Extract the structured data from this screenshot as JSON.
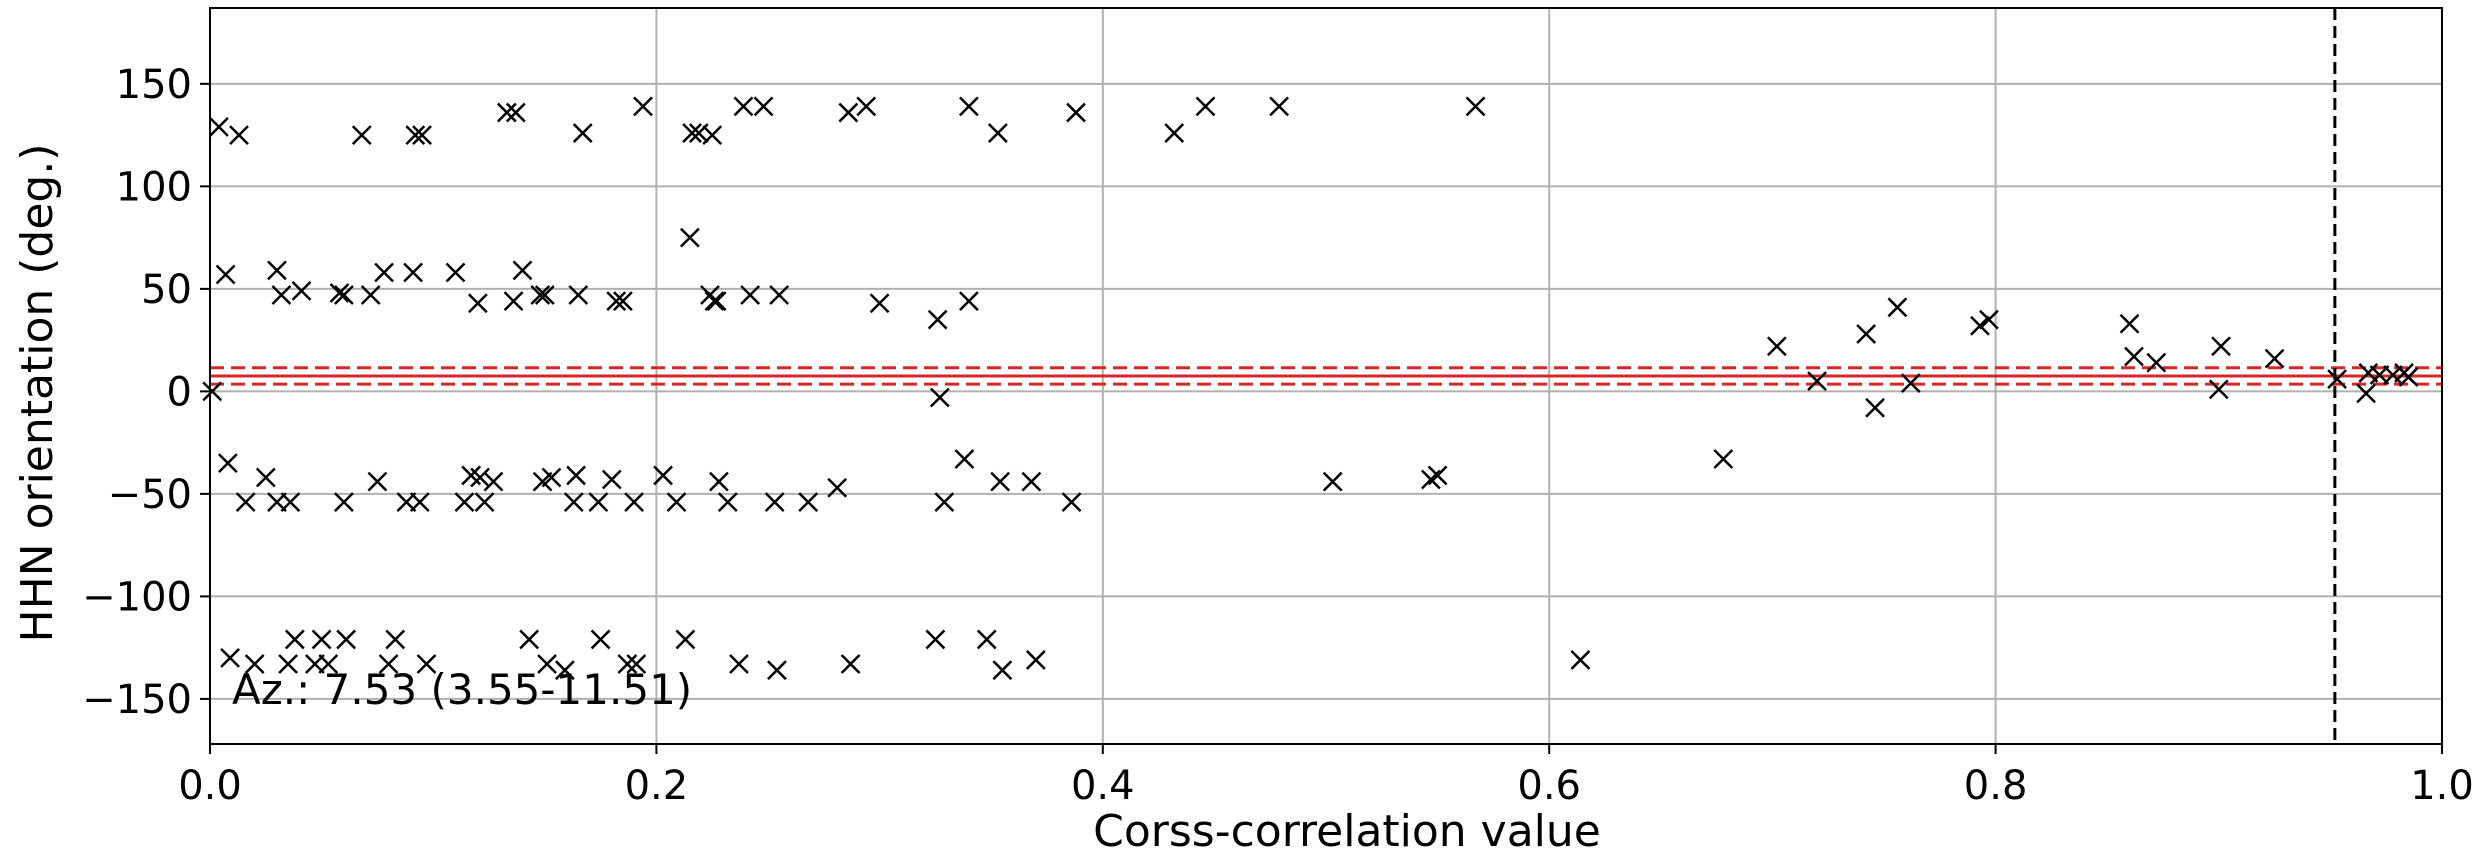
{
  "chart_data": {
    "type": "scatter",
    "xlabel": "Corss-correlation value",
    "ylabel": "HHN orientation (deg.)",
    "xlim": [
      0.0,
      1.0
    ],
    "ylim": [
      -172,
      187
    ],
    "x_ticks": [
      0.0,
      0.2,
      0.4,
      0.6,
      0.8,
      1.0
    ],
    "x_tick_labels": [
      "0.0",
      "0.2",
      "0.4",
      "0.6",
      "0.8",
      "1.0"
    ],
    "y_ticks": [
      150,
      100,
      50,
      0,
      -50,
      -100,
      -150
    ],
    "y_tick_labels": [
      "150",
      "100",
      "50",
      "0",
      "−50",
      "−100",
      "−150"
    ],
    "grid": true,
    "marker": "x",
    "marker_color": "#000000",
    "annotation": "Az.: 7.53 (3.55-11.51)",
    "best_azimuth": 7.53,
    "azimuth_range": [
      3.55,
      11.51
    ],
    "red_line_color": "#d62728",
    "threshold_x": 0.952,
    "series": [
      {
        "points": [
          [
            0.001,
            0
          ],
          [
            0.004,
            129
          ],
          [
            0.007,
            57
          ],
          [
            0.008,
            -35
          ],
          [
            0.009,
            -130
          ],
          [
            0.013,
            125
          ],
          [
            0.016,
            -54
          ],
          [
            0.02,
            -133
          ],
          [
            0.025,
            -42
          ],
          [
            0.03,
            59
          ],
          [
            0.03,
            -54
          ],
          [
            0.032,
            47
          ],
          [
            0.035,
            -133
          ],
          [
            0.036,
            -54
          ],
          [
            0.038,
            -121
          ],
          [
            0.041,
            49
          ],
          [
            0.047,
            -133
          ],
          [
            0.05,
            -121
          ],
          [
            0.053,
            -133
          ],
          [
            0.058,
            48
          ],
          [
            0.06,
            47
          ],
          [
            0.06,
            -54
          ],
          [
            0.061,
            -121
          ],
          [
            0.068,
            125
          ],
          [
            0.072,
            47
          ],
          [
            0.075,
            -44
          ],
          [
            0.078,
            58
          ],
          [
            0.08,
            -133
          ],
          [
            0.083,
            -121
          ],
          [
            0.088,
            -54
          ],
          [
            0.091,
            58
          ],
          [
            0.092,
            125
          ],
          [
            0.094,
            -54
          ],
          [
            0.095,
            125
          ],
          [
            0.097,
            -133
          ],
          [
            0.11,
            58
          ],
          [
            0.114,
            -54
          ],
          [
            0.117,
            -41
          ],
          [
            0.12,
            43
          ],
          [
            0.121,
            -42
          ],
          [
            0.123,
            -54
          ],
          [
            0.127,
            -44
          ],
          [
            0.133,
            136
          ],
          [
            0.136,
            44
          ],
          [
            0.137,
            136
          ],
          [
            0.14,
            59
          ],
          [
            0.143,
            -121
          ],
          [
            0.148,
            47
          ],
          [
            0.149,
            -44
          ],
          [
            0.15,
            47
          ],
          [
            0.151,
            -133
          ],
          [
            0.153,
            -42
          ],
          [
            0.159,
            -136
          ],
          [
            0.163,
            -54
          ],
          [
            0.164,
            -41
          ],
          [
            0.165,
            47
          ],
          [
            0.167,
            126
          ],
          [
            0.174,
            -54
          ],
          [
            0.175,
            -121
          ],
          [
            0.18,
            -43
          ],
          [
            0.182,
            44
          ],
          [
            0.185,
            44
          ],
          [
            0.187,
            -133
          ],
          [
            0.19,
            -54
          ],
          [
            0.191,
            -133
          ],
          [
            0.194,
            139
          ],
          [
            0.203,
            -41
          ],
          [
            0.209,
            -54
          ],
          [
            0.213,
            -121
          ],
          [
            0.215,
            75
          ],
          [
            0.216,
            126
          ],
          [
            0.219,
            126
          ],
          [
            0.224,
            47
          ],
          [
            0.225,
            125
          ],
          [
            0.226,
            44
          ],
          [
            0.227,
            44
          ],
          [
            0.228,
            -44
          ],
          [
            0.232,
            -54
          ],
          [
            0.237,
            -133
          ],
          [
            0.239,
            139
          ],
          [
            0.242,
            47
          ],
          [
            0.248,
            139
          ],
          [
            0.253,
            -54
          ],
          [
            0.254,
            -136
          ],
          [
            0.255,
            47
          ],
          [
            0.268,
            -54
          ],
          [
            0.281,
            -47
          ],
          [
            0.286,
            136
          ],
          [
            0.287,
            -133
          ],
          [
            0.294,
            139
          ],
          [
            0.3,
            43
          ],
          [
            0.325,
            -121
          ],
          [
            0.326,
            35
          ],
          [
            0.327,
            -3
          ],
          [
            0.329,
            -54
          ],
          [
            0.338,
            -33
          ],
          [
            0.34,
            139
          ],
          [
            0.34,
            44
          ],
          [
            0.348,
            -121
          ],
          [
            0.353,
            126
          ],
          [
            0.354,
            -44
          ],
          [
            0.355,
            -136
          ],
          [
            0.368,
            -44
          ],
          [
            0.37,
            -131
          ],
          [
            0.386,
            -54
          ],
          [
            0.388,
            136
          ],
          [
            0.432,
            126
          ],
          [
            0.446,
            139
          ],
          [
            0.479,
            139
          ],
          [
            0.503,
            -44
          ],
          [
            0.547,
            -43
          ],
          [
            0.55,
            -41
          ],
          [
            0.567,
            139
          ],
          [
            0.614,
            -131
          ],
          [
            0.678,
            -33
          ],
          [
            0.702,
            22
          ],
          [
            0.72,
            5
          ],
          [
            0.742,
            28
          ],
          [
            0.746,
            -8
          ],
          [
            0.756,
            41
          ],
          [
            0.762,
            4
          ],
          [
            0.793,
            32
          ],
          [
            0.797,
            35
          ],
          [
            0.86,
            33
          ],
          [
            0.862,
            17
          ],
          [
            0.872,
            14
          ],
          [
            0.9,
            1
          ],
          [
            0.901,
            22
          ],
          [
            0.925,
            16
          ],
          [
            0.953,
            6
          ],
          [
            0.966,
            -1
          ],
          [
            0.967,
            9
          ],
          [
            0.972,
            8
          ],
          [
            0.978,
            8
          ],
          [
            0.983,
            9
          ],
          [
            0.985,
            7
          ]
        ]
      }
    ]
  }
}
